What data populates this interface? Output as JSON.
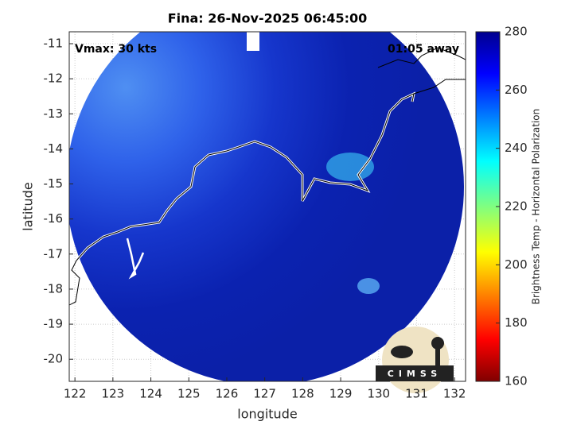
{
  "chart_data": {
    "type": "swath",
    "title": "Fina: 26-Nov-2025 06:45:00",
    "xlabel": "longitude",
    "ylabel": "latitude",
    "xlim": [
      121.85,
      132.29
    ],
    "xticks": [
      122,
      123,
      124,
      125,
      126,
      127,
      128,
      129,
      130,
      131,
      132
    ],
    "ylim": [
      -20.63,
      -10.66
    ],
    "yticks": [
      -11,
      -12,
      -13,
      -14,
      -15,
      -16,
      -17,
      -18,
      -19,
      -20
    ],
    "grid": true,
    "annotations": [
      "Vmax: 30 kts",
      "01:05 away"
    ],
    "logo": "CIMSS",
    "colorbar": {
      "label": "Brightness Temp - Horizontal Polarization",
      "lim": [
        160,
        280
      ],
      "ticks": [
        160,
        180,
        200,
        220,
        240,
        260,
        280
      ]
    }
  }
}
